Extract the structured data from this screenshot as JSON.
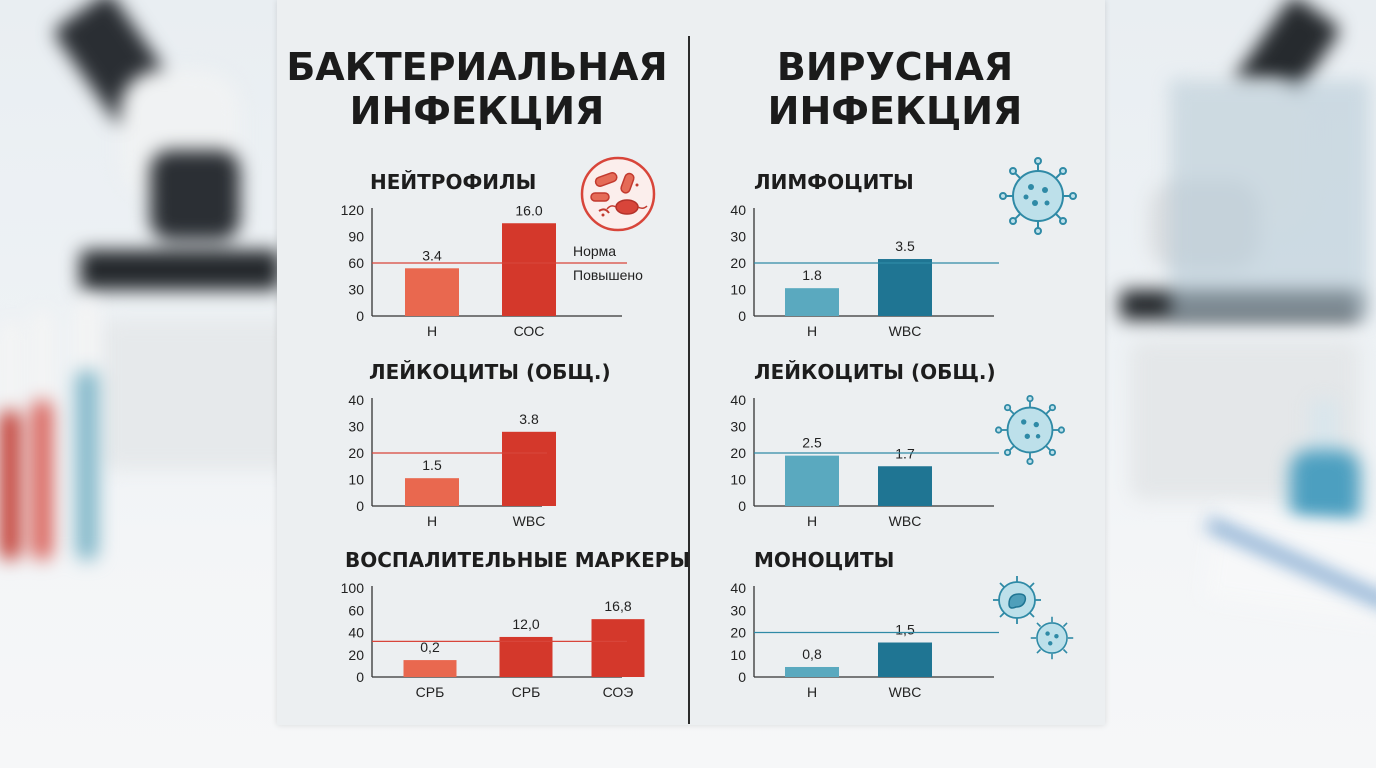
{
  "left": {
    "title_line1": "БАКТЕРИАЛЬНАЯ",
    "title_line2": "ИНФЕКЦИЯ",
    "icon": "bacteria-icon"
  },
  "right": {
    "title_line1": "ВИРУСНАЯ",
    "title_line2": "ИНФЕКЦИЯ",
    "icon": "virus-icon"
  },
  "colors": {
    "bacterial_light": "#e9684f",
    "bacterial_dark": "#d4382b",
    "bacterial_line": "#d8453a",
    "viral_light": "#5aa9bf",
    "viral_dark": "#1f7593",
    "viral_line": "#2f8aa6"
  },
  "chart_data": [
    {
      "id": "neutrophils",
      "type": "bar",
      "title": "НЕЙТРОФИЛЫ",
      "categories": [
        "Н",
        "СОС"
      ],
      "values": [
        54,
        105
      ],
      "data_labels": [
        "3.4",
        "16.0"
      ],
      "yticks": [
        "120",
        "90",
        "60",
        "30",
        "0"
      ],
      "ylim": [
        0,
        120
      ],
      "threshold": 60,
      "annotations": [
        "Норма",
        "Повышено"
      ],
      "grid": false
    },
    {
      "id": "leukocytes-bacterial",
      "type": "bar",
      "title": "ЛЕЙКОЦИТЫ (ОБЩ.)",
      "categories": [
        "Н",
        "WBC"
      ],
      "values": [
        10.5,
        28
      ],
      "data_labels": [
        "1.5",
        "3.8"
      ],
      "yticks": [
        "40",
        "30",
        "20",
        "10",
        "0"
      ],
      "ylim": [
        0,
        40
      ],
      "threshold": 20,
      "grid": false
    },
    {
      "id": "inflammatory-markers",
      "type": "bar",
      "title": "ВОСПАЛИТЕЛЬНЫЕ МАРКЕРЫ",
      "categories": [
        "СРБ",
        "СРБ",
        "СОЭ"
      ],
      "values": [
        19,
        45,
        65
      ],
      "data_labels": [
        "0,2",
        "12,0",
        "16,8"
      ],
      "yticks": [
        "100",
        "60",
        "40",
        "20",
        "0"
      ],
      "ylim": [
        0,
        100
      ],
      "threshold": 40,
      "grid": false
    },
    {
      "id": "lymphocytes",
      "type": "bar",
      "title": "ЛИМФОЦИТЫ",
      "categories": [
        "Н",
        "WBC"
      ],
      "values": [
        10.5,
        21.5
      ],
      "data_labels": [
        "1.8",
        "3.5"
      ],
      "yticks": [
        "40",
        "30",
        "20",
        "10",
        "0"
      ],
      "ylim": [
        0,
        40
      ],
      "threshold": 20,
      "grid": false
    },
    {
      "id": "leukocytes-viral",
      "type": "bar",
      "title": "ЛЕЙКОЦИТЫ (ОБЩ.)",
      "categories": [
        "Н",
        "WBC"
      ],
      "values": [
        19,
        15
      ],
      "data_labels": [
        "2.5",
        "1.7"
      ],
      "yticks": [
        "40",
        "30",
        "20",
        "10",
        "0"
      ],
      "ylim": [
        0,
        40
      ],
      "threshold": 20,
      "grid": false
    },
    {
      "id": "monocytes",
      "type": "bar",
      "title": "МОНОЦИТЫ",
      "categories": [
        "Н",
        "WBC"
      ],
      "values": [
        4.5,
        15.5
      ],
      "data_labels": [
        "0,8",
        "1,5"
      ],
      "yticks": [
        "40",
        "30",
        "20",
        "10",
        "0"
      ],
      "ylim": [
        0,
        40
      ],
      "threshold": 20,
      "grid": false
    }
  ]
}
